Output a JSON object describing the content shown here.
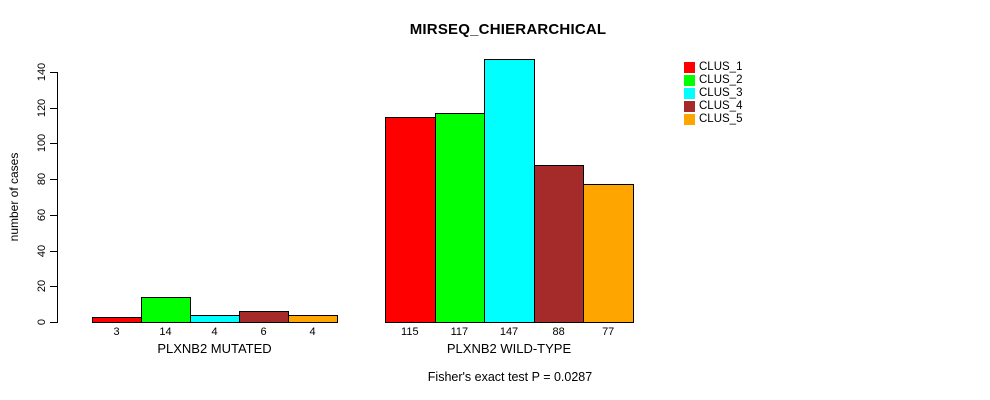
{
  "chart_data": {
    "type": "bar",
    "title": "MIRSEQ_CHIERARCHICAL",
    "ylabel": "number of cases",
    "xlabel": "",
    "footnote": "Fisher's exact test P = 0.0287",
    "ylim": [
      0,
      140
    ],
    "yticks": [
      0,
      20,
      40,
      60,
      80,
      100,
      120,
      140
    ],
    "categories": [
      "PLXNB2 MUTATED",
      "PLXNB2 WILD-TYPE"
    ],
    "series": [
      {
        "name": "CLUS_1",
        "color": "#FF0000",
        "values": [
          3,
          115
        ]
      },
      {
        "name": "CLUS_2",
        "color": "#00FF00",
        "values": [
          14,
          117
        ]
      },
      {
        "name": "CLUS_3",
        "color": "#00FFFF",
        "values": [
          4,
          147
        ]
      },
      {
        "name": "CLUS_4",
        "color": "#A52A2A",
        "values": [
          6,
          88
        ]
      },
      {
        "name": "CLUS_5",
        "color": "#FFA500",
        "values": [
          4,
          77
        ]
      }
    ],
    "legend": {
      "position": "right",
      "entries": [
        {
          "label": "CLUS_1",
          "color": "#FF0000"
        },
        {
          "label": "CLUS_2",
          "color": "#00FF00"
        },
        {
          "label": "CLUS_3",
          "color": "#00FFFF"
        },
        {
          "label": "CLUS_4",
          "color": "#A52A2A"
        },
        {
          "label": "CLUS_5",
          "color": "#FFA500"
        }
      ]
    },
    "grid": false,
    "bar_value_labels_shown": true
  }
}
